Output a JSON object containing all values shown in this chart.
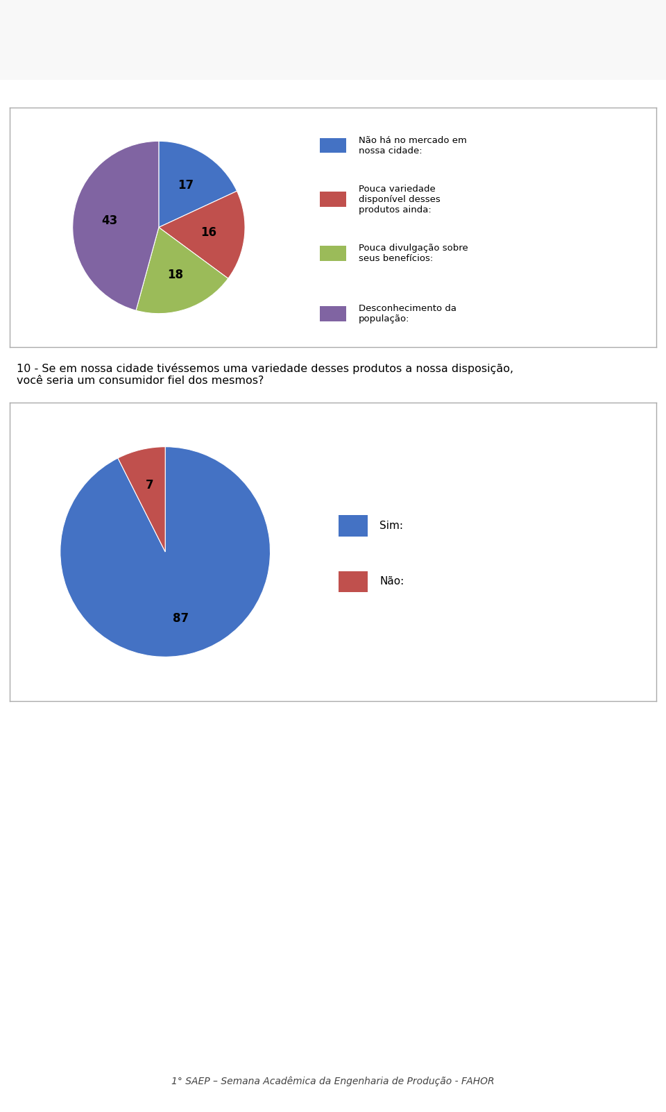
{
  "chart1": {
    "values": [
      17,
      16,
      18,
      43
    ],
    "colors": [
      "#4472C4",
      "#C0504D",
      "#9BBB59",
      "#8064A2"
    ],
    "labels": [
      "Não há no mercado em\nnossa cidade:",
      "Pouca variedade\ndisponível desses\nprodutos ainda:",
      "Pouca divulgação sobre\nseus benefícios:",
      "Desconhecimento da\npopulação:"
    ],
    "label_values": [
      17,
      16,
      18,
      43
    ]
  },
  "chart2": {
    "values": [
      87,
      7
    ],
    "colors": [
      "#4472C4",
      "#C0504D"
    ],
    "labels": [
      "Sim:",
      "Não:"
    ],
    "label_values": [
      87,
      7
    ]
  },
  "question_text": "10 - Se em nossa cidade tivéssemos uma variedade desses produtos a nossa disposição,\nvocê seria um consumidor fiel dos mesmos?",
  "footer_text": "1° SAEP – Semana Acadêmica da Engenharia de Produção - FAHOR",
  "bg_color": "#FFFFFF",
  "box_border": "#AAAAAA",
  "header_bg": "#FFFFFF",
  "chart1_startangle": 90,
  "chart2_startangle": 90
}
